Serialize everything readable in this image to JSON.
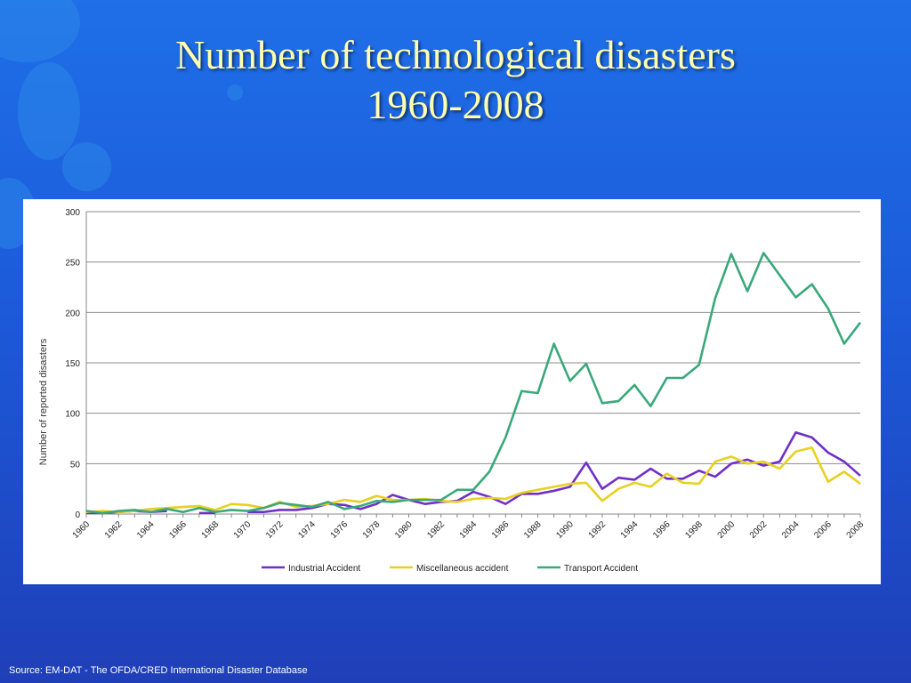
{
  "title_line1": "Number of technological disasters",
  "title_line2": "1960-2008",
  "source": "Source: EM-DAT - The OFDA/CRED International Disaster Database",
  "colors": {
    "background": "#1f5fe0",
    "title": "#ffffb0",
    "industrial": "#7030c8",
    "miscellaneous": "#e8d020",
    "transport": "#3aa87a"
  },
  "chart_data": {
    "type": "line",
    "ylabel": "Number of reported disasters",
    "xlabel": "",
    "ylim": [
      0,
      300
    ],
    "yticks": [
      0,
      50,
      100,
      150,
      200,
      250,
      300
    ],
    "x": [
      1960,
      1961,
      1962,
      1963,
      1964,
      1965,
      1966,
      1967,
      1968,
      1969,
      1970,
      1971,
      1972,
      1973,
      1974,
      1975,
      1976,
      1977,
      1978,
      1979,
      1980,
      1981,
      1982,
      1983,
      1984,
      1985,
      1986,
      1987,
      1988,
      1989,
      1990,
      1991,
      1992,
      1993,
      1994,
      1995,
      1996,
      1997,
      1998,
      1999,
      2000,
      2001,
      2002,
      2003,
      2004,
      2005,
      2006,
      2007,
      2008
    ],
    "xtick_labels": [
      "1960",
      "1962",
      "1964",
      "1966",
      "1968",
      "1970",
      "1972",
      "1974",
      "1976",
      "1978",
      "1980",
      "1982",
      "1984",
      "1986",
      "1988",
      "1990",
      "1992",
      "1994",
      "1996",
      "1998",
      "2000",
      "2002",
      "2004",
      "2006",
      "2008"
    ],
    "grid": "horizontal",
    "legend_position": "bottom",
    "series": [
      {
        "name": "Industrial Accident",
        "color": "#7030c8",
        "values": [
          1,
          1,
          2,
          3,
          2,
          3,
          null,
          1,
          1,
          null,
          2,
          2,
          4,
          4,
          6,
          10,
          9,
          5,
          10,
          19,
          14,
          10,
          12,
          13,
          22,
          17,
          10,
          20,
          20,
          23,
          27,
          51,
          25,
          36,
          34,
          45,
          35,
          35,
          43,
          37,
          50,
          54,
          48,
          52,
          81,
          76,
          61,
          52,
          38
        ]
      },
      {
        "name": "Miscellaneous accident",
        "color": "#e8d020",
        "values": [
          2,
          3,
          2,
          3,
          5,
          6,
          7,
          8,
          4,
          10,
          9,
          6,
          12,
          7,
          8,
          10,
          14,
          12,
          18,
          14,
          14,
          15,
          13,
          12,
          15,
          16,
          15,
          21,
          24,
          27,
          30,
          31,
          13,
          25,
          31,
          27,
          40,
          31,
          30,
          52,
          57,
          50,
          52,
          45,
          62,
          66,
          32,
          42,
          30
        ]
      },
      {
        "name": "Transport Accident",
        "color": "#3aa87a",
        "values": [
          3,
          1,
          3,
          4,
          2,
          5,
          2,
          6,
          2,
          4,
          3,
          6,
          11,
          9,
          7,
          12,
          5,
          8,
          13,
          12,
          14,
          14,
          14,
          24,
          24,
          42,
          76,
          122,
          120,
          169,
          132,
          149,
          110,
          112,
          128,
          107,
          135,
          135,
          148,
          214,
          258,
          221,
          259,
          237,
          215,
          228,
          204,
          169,
          190
        ]
      }
    ]
  }
}
